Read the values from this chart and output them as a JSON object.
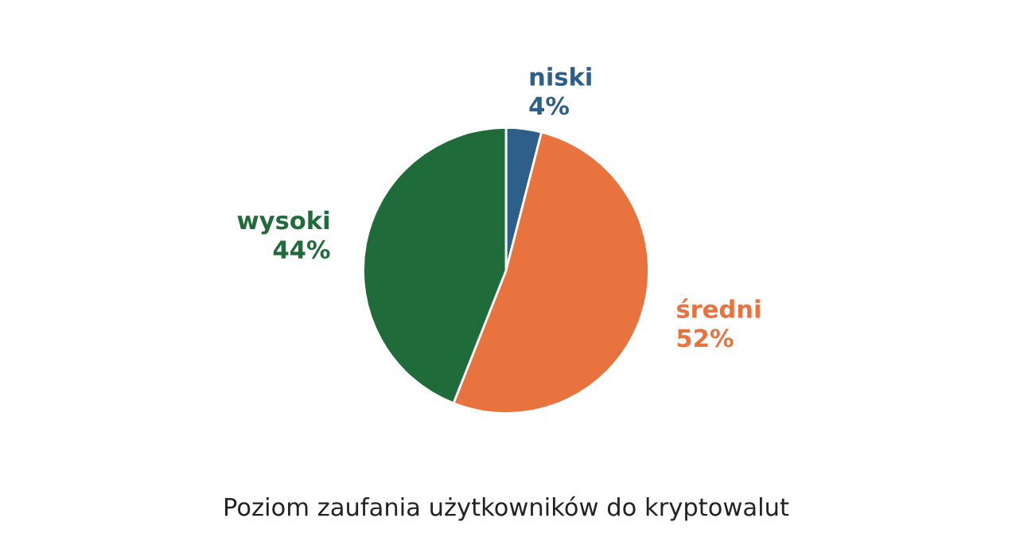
{
  "chart_data": {
    "type": "pie",
    "title": "Poziom zaufania użytkowników do kryptowalut",
    "categories": [
      "niski",
      "średni",
      "wysoki"
    ],
    "values": [
      4,
      52,
      44
    ],
    "value_labels": [
      "4%",
      "52%",
      "44%"
    ],
    "colors": [
      "#2d5f8a",
      "#e8733e",
      "#1f6b3a"
    ],
    "legend": false
  }
}
